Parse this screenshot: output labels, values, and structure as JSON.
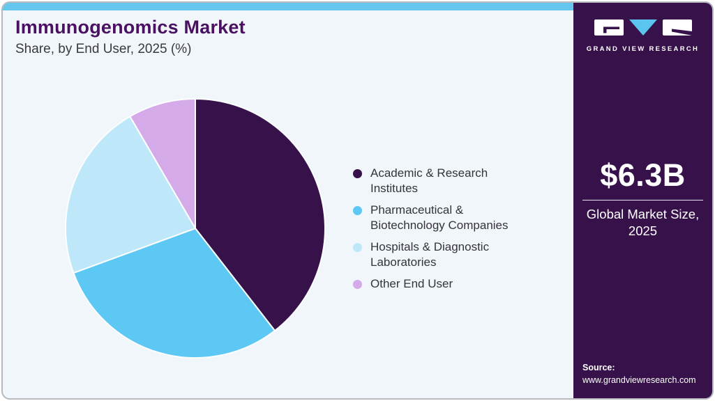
{
  "header": {
    "title": "Immunogenomics Market",
    "subtitle": "Share, by End User, 2025 (%)"
  },
  "chart_data": {
    "type": "pie",
    "title": "Immunogenomics Market Share, by End User, 2025 (%)",
    "labels": [
      "Academic & Research Institutes",
      "Pharmaceutical & Biotechnology Companies",
      "Hospitals & Diagnostic Laboratories",
      "Other End User"
    ],
    "values": [
      39.5,
      29.9,
      22.2,
      8.4
    ],
    "unit": "%",
    "colors": [
      "#371149",
      "#5cc8f3",
      "#bee8fa",
      "#d4aae9"
    ],
    "start_angle_deg": 0,
    "direction": "clockwise",
    "legend_position": "right"
  },
  "sidebar": {
    "logo_wordmark": "GRAND VIEW RESEARCH",
    "market_size_value": "$6.3B",
    "market_size_caption": "Global Market Size, 2025",
    "source_label": "Source:",
    "source_url": "www.grandviewresearch.com"
  },
  "colors": {
    "background": "#f1f6fa",
    "accent_bar": "#65c6ee",
    "sidebar_background": "#371149",
    "title_text": "#4a1162",
    "logo_triangle": "#5bc5ef"
  }
}
